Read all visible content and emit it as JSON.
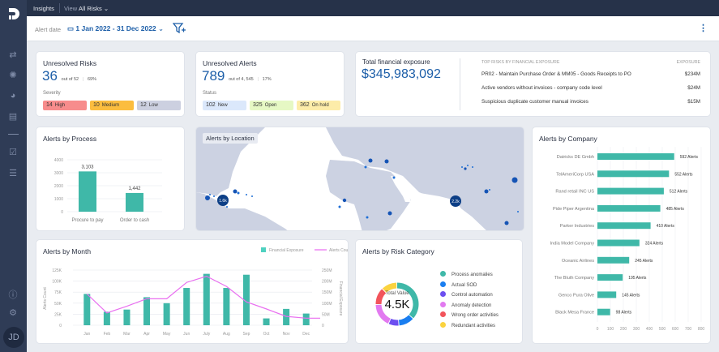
{
  "topbar": {
    "section": "Insights",
    "view_label": "View",
    "view_value": "All Risks"
  },
  "filterbar": {
    "alert_date_label": "Alert date",
    "date_range": "1 Jan 2022 - 31 Dec 2022"
  },
  "sidebar": {
    "avatar": "JD"
  },
  "unresolved_risks": {
    "title": "Unresolved Risks",
    "value": "36",
    "out_of": "out of 52",
    "percent": "69%",
    "severity_label": "Severity",
    "pills": [
      {
        "count": "14",
        "label": "High",
        "color": "#f78c8c"
      },
      {
        "count": "10",
        "label": "Medium",
        "color": "#fbbd3f"
      },
      {
        "count": "12",
        "label": "Low",
        "color": "#ccd0e0"
      }
    ]
  },
  "unresolved_alerts": {
    "title": "Unresolved Alerts",
    "value": "789",
    "out_of": "out of 4, 545",
    "percent": "17%",
    "status_label": "Status",
    "pills": [
      {
        "count": "102",
        "label": "New",
        "color": "#dbe8fb"
      },
      {
        "count": "325",
        "label": "Open",
        "color": "#e6f8c4"
      },
      {
        "count": "362",
        "label": "On hold",
        "color": "#fdeca9"
      }
    ]
  },
  "exposure": {
    "title": "Total financial exposure",
    "value": "$345,983,092",
    "top_header": "TOP RISKS BY FINANCIAL EXPOSURE",
    "exposure_header": "EXPOSURE",
    "rows": [
      {
        "name": "PR02 - Maintain Purchase Order & MM05 - Goods Receipts to PO",
        "value": "$234M"
      },
      {
        "name": "Active vendors without invoices - company code level",
        "value": "$24M"
      },
      {
        "name": "Suspicious duplicate customer manual invoices",
        "value": "$15M"
      }
    ]
  },
  "map": {
    "title": "Alerts by Location",
    "clusters": [
      "1.6k",
      "2.2k"
    ]
  },
  "chart_data": [
    {
      "type": "bar",
      "title": "Alerts by Process",
      "categories": [
        "Procure to pay",
        "Order to cash"
      ],
      "values": [
        3103,
        1442
      ],
      "value_labels": [
        "3,103",
        "1,442"
      ],
      "yticks": [
        "0",
        "1000",
        "2000",
        "3000",
        "4000"
      ],
      "ylim": [
        0,
        4000
      ]
    },
    {
      "type": "bar+line",
      "title": "Alerts by Month",
      "categories": [
        "Jan",
        "Feb",
        "Mar",
        "Apr",
        "May",
        "Jun",
        "July",
        "Aug",
        "Sep",
        "Oct",
        "Nov",
        "Dec"
      ],
      "series": [
        {
          "name": "Financial Exposure",
          "axis": "right",
          "unit": "M",
          "values": [
            142,
            61,
            71,
            127,
            100,
            169,
            233,
            169,
            229,
            31,
            74,
            53
          ]
        },
        {
          "name": "Alerts Count",
          "axis": "left",
          "unit": "K",
          "values": [
            71,
            28,
            43,
            60,
            60,
            97,
            111,
            88,
            53,
            37,
            20,
            16
          ]
        }
      ],
      "ylabel": "Alerts Count",
      "y2label": "Financial Exposure",
      "yticks": [
        "0",
        "25K",
        "50K",
        "75K",
        "100K",
        "125K"
      ],
      "y2ticks": [
        "0",
        "50M",
        "100M",
        "150M",
        "200M",
        "250M"
      ],
      "ylim": [
        0,
        125
      ],
      "y2lim": [
        0,
        250
      ],
      "legend": "top-right"
    },
    {
      "type": "pie",
      "title": "Alerts by Risk Category",
      "center_label": "Total Value",
      "center_value": "4.5K",
      "categories": [
        "Process anomalies",
        "Actual SOD",
        "Control automation",
        "Anomaly detection",
        "Wrong order activities",
        "Redundant activities"
      ],
      "shares": [
        37,
        12,
        8,
        18,
        13,
        12
      ],
      "colors": [
        "#3fb8a8",
        "#1a7ef0",
        "#6c4ff0",
        "#e27af0",
        "#f2545b",
        "#fbd33f"
      ]
    },
    {
      "type": "bar",
      "orientation": "horizontal",
      "title": "Alerts by Company",
      "categories": [
        "Datricks DE Gmbh",
        "TelAmeriCorp USA",
        "Rand retail INC US",
        "Pide Piper Argentina",
        "Parker Industries",
        "India Model Company",
        "Oceanic Airlines",
        "The Bluth Company",
        "Genco Pura Olive",
        "Black Mesa France"
      ],
      "values": [
        592,
        552,
        512,
        485,
        410,
        324,
        245,
        195,
        145,
        98
      ],
      "value_suffix": "Alerts",
      "xticks": [
        "0",
        "100",
        "200",
        "300",
        "400",
        "500",
        "600",
        "700",
        "800",
        "1000"
      ],
      "xlim": [
        0,
        800
      ]
    }
  ]
}
